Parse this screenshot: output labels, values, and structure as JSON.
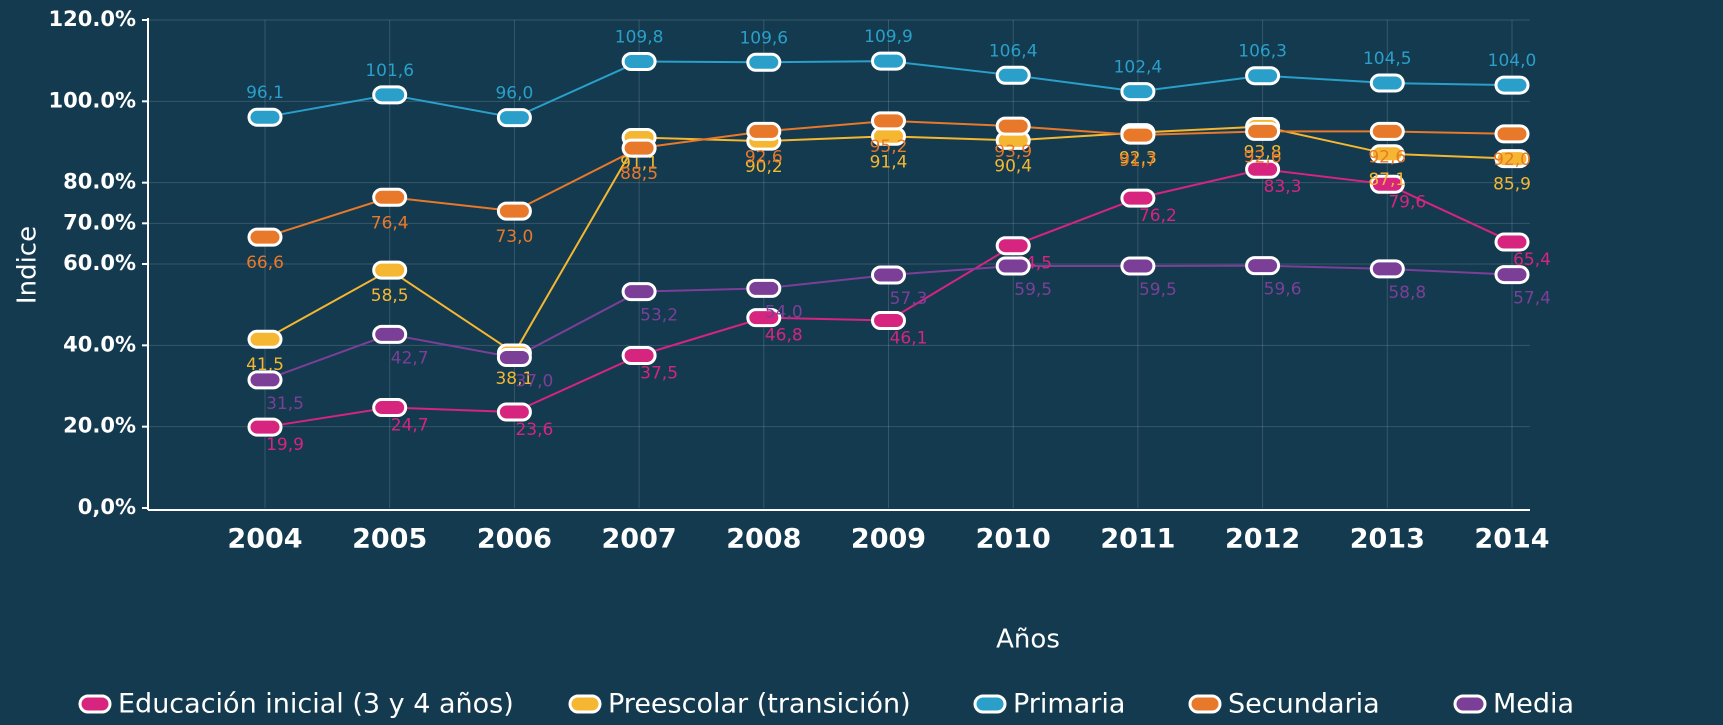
{
  "chart_data": {
    "type": "line",
    "y_label": "Indice",
    "x_label": "Años",
    "categories": [
      "2004",
      "2005",
      "2006",
      "2007",
      "2008",
      "2009",
      "2010",
      "2011",
      "2012",
      "2013",
      "2014"
    ],
    "ylim": [
      0,
      120
    ],
    "yticks": [
      {
        "value": 0,
        "label": "0,0%"
      },
      {
        "value": 20,
        "label": "20.0%"
      },
      {
        "value": 40,
        "label": "40.0%"
      },
      {
        "value": 60,
        "label": "60.0%"
      },
      {
        "value": 70,
        "label": "70.0%"
      },
      {
        "value": 80,
        "label": "80.0%"
      },
      {
        "value": 100,
        "label": "100.0%"
      },
      {
        "value": 120,
        "label": "120.0%"
      }
    ],
    "grid": true,
    "legend": "bottom",
    "series": [
      {
        "name": "Educación inicial (3 y 4 años)",
        "color": "#d6247f",
        "values": [
          19.9,
          24.7,
          23.6,
          37.5,
          46.8,
          46.1,
          64.5,
          76.2,
          83.3,
          79.6,
          65.4
        ],
        "value_labels": [
          "19,9",
          "24,7",
          "23,6",
          "37,5",
          "46,8",
          "46,1",
          "64,5",
          "76,2",
          "83,3",
          "79,6",
          "65,4"
        ]
      },
      {
        "name": "Preescolar (transición)",
        "color": "#f5b731",
        "values": [
          41.5,
          58.5,
          38.1,
          91.1,
          90.2,
          91.4,
          90.4,
          92.3,
          93.8,
          87.1,
          85.9
        ],
        "value_labels": [
          "41,5",
          "58,5",
          "38,1",
          "91,1",
          "90,2",
          "91,4",
          "90,4",
          "92,3",
          "93,8",
          "87,1",
          "85,9"
        ]
      },
      {
        "name": "Primaria",
        "color": "#2a9fc9",
        "values": [
          96.1,
          101.6,
          96.0,
          109.8,
          109.6,
          109.9,
          106.4,
          102.4,
          106.3,
          104.5,
          104.0
        ],
        "value_labels": [
          "96,1",
          "101,6",
          "96,0",
          "109,8",
          "109,6",
          "109,9",
          "106,4",
          "102,4",
          "106,3",
          "104,5",
          "104,0"
        ]
      },
      {
        "name": "Secundaria",
        "color": "#e8782a",
        "values": [
          66.6,
          76.4,
          73.0,
          88.5,
          92.6,
          95.2,
          93.9,
          91.7,
          92.6,
          92.6,
          92.0
        ],
        "value_labels": [
          "66,6",
          "76,4",
          "73,0",
          "88,5",
          "92,6",
          "95,2",
          "93,9",
          "91,7",
          "92,6",
          "92,6",
          "92,0"
        ]
      },
      {
        "name": "Media",
        "color": "#7b3f98",
        "values": [
          31.5,
          42.7,
          37.0,
          53.2,
          54.0,
          57.3,
          59.5,
          59.5,
          59.6,
          58.8,
          57.4
        ],
        "value_labels": [
          "31,5",
          "42,7",
          "37,0",
          "53,2",
          "54,0",
          "57,3",
          "59,5",
          "59,5",
          "59,6",
          "58,8",
          "57,4"
        ]
      }
    ]
  }
}
